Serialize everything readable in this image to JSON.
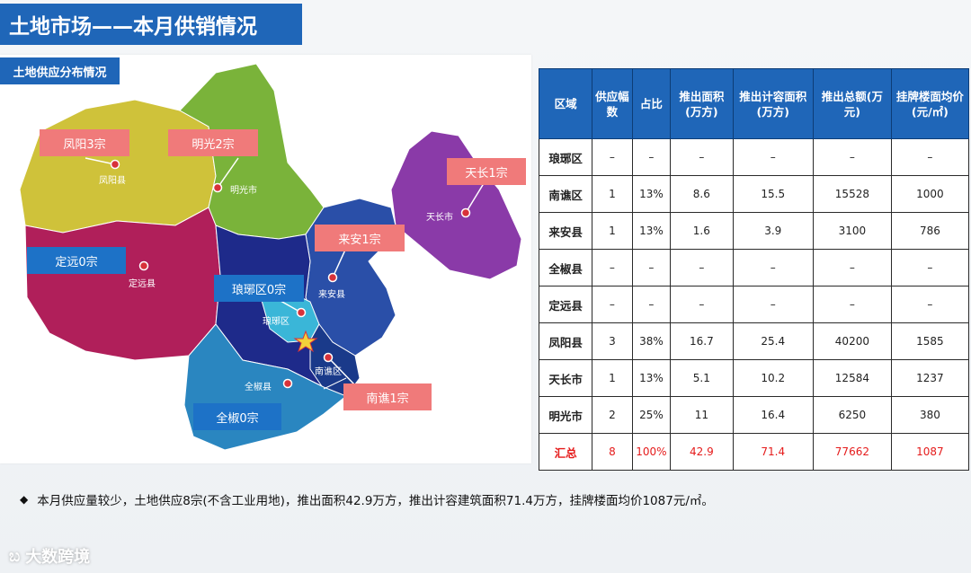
{
  "header": {
    "title": "土地市场——本月供销情况"
  },
  "map": {
    "subtitle": "土地供应分布情况",
    "labels": {
      "fengyang": "凤阳3宗",
      "mingguang": "明光2宗",
      "tianchang": "天长1宗",
      "dingyuan": "定远0宗",
      "laian": "来安1宗",
      "langya": "琅琊区0宗",
      "nanqiao": "南谯1宗",
      "quanjiao": "全椒0宗"
    },
    "cities": {
      "fengyang": "凤阳县",
      "mingguang": "明光市",
      "tianchang": "天长市",
      "dingyuan": "定远县",
      "laian": "来安县",
      "langya": "琅琊区",
      "nanqiao": "南谯区",
      "quanjiao": "全椒县"
    },
    "colors": {
      "fengyang": "#cfc23a",
      "mingguang": "#7ab33a",
      "tianchang": "#8a3aa8",
      "dingyuan": "#b01f5a",
      "laian": "#2a4fa8",
      "langya": "#3ab6d8",
      "nanqiao": "#1a3a8a",
      "quanjiao": "#2a86c0",
      "central": "#1e2a8a"
    }
  },
  "table": {
    "headers": [
      "区域",
      "供应幅数",
      "占比",
      "推出面积(万方)",
      "推出计容面积(万方)",
      "推出总额(万元)",
      "挂牌楼面均价(元/㎡)"
    ],
    "rows": [
      [
        "琅琊区",
        "–",
        "–",
        "–",
        "–",
        "–",
        "–"
      ],
      [
        "南谯区",
        "1",
        "13%",
        "8.6",
        "15.5",
        "15528",
        "1000"
      ],
      [
        "来安县",
        "1",
        "13%",
        "1.6",
        "3.9",
        "3100",
        "786"
      ],
      [
        "全椒县",
        "–",
        "–",
        "–",
        "–",
        "–",
        "–"
      ],
      [
        "定远县",
        "–",
        "–",
        "–",
        "–",
        "–",
        "–"
      ],
      [
        "凤阳县",
        "3",
        "38%",
        "16.7",
        "25.4",
        "40200",
        "1585"
      ],
      [
        "天长市",
        "1",
        "13%",
        "5.1",
        "10.2",
        "12584",
        "1237"
      ],
      [
        "明光市",
        "2",
        "25%",
        "11",
        "16.4",
        "6250",
        "380"
      ]
    ],
    "total": [
      "汇总",
      "8",
      "100%",
      "42.9",
      "71.4",
      "77662",
      "1087"
    ]
  },
  "summary": {
    "bullet": "◆",
    "text": "本月供应量较少，土地供应8宗(不含工业用地)，推出面积42.9万方，推出计容建筑面积71.4万方，挂牌楼面均价1087元/㎡。"
  },
  "brand": {
    "icon": "ಬ",
    "text": "大数跨境"
  }
}
